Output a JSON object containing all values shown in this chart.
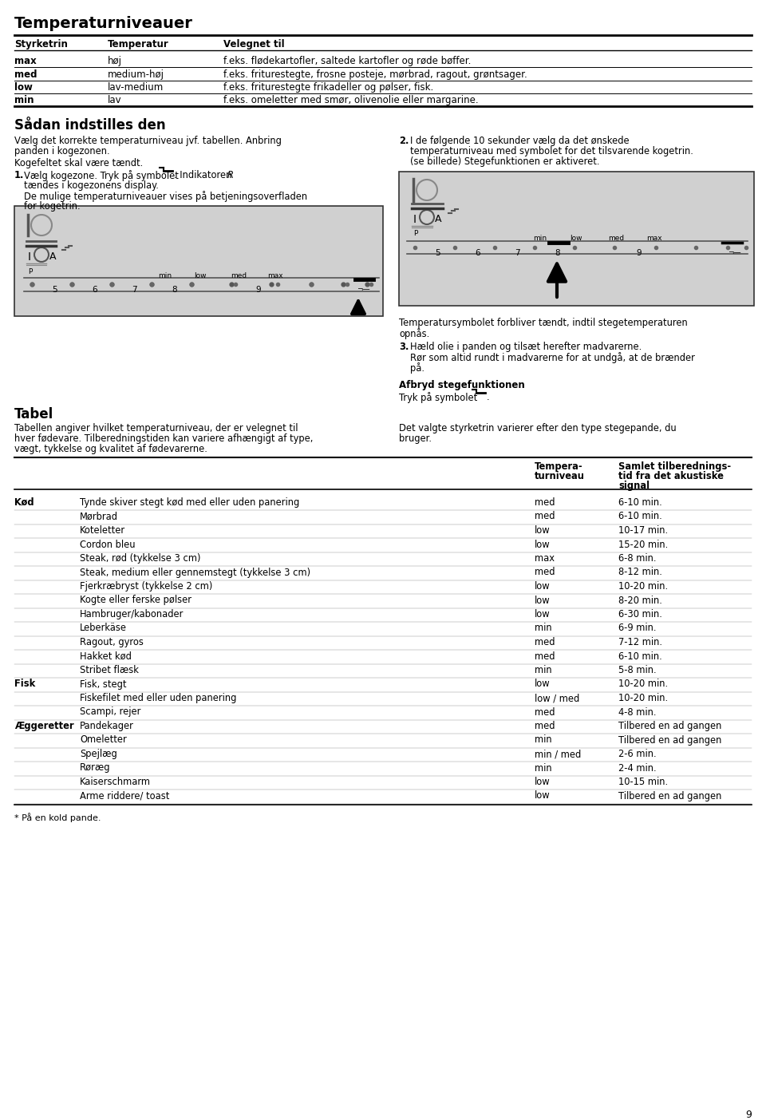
{
  "title": "Temperaturniveauer",
  "page_number": "9",
  "background": "#ffffff",
  "table1_headers": [
    "Styrketrin",
    "Temperatur",
    "Velegnet til"
  ],
  "table1_rows": [
    [
      "max",
      "høj",
      "f.eks. flødekartofler, saltede kartofler og røde bøffer."
    ],
    [
      "med",
      "medium-høj",
      "f.eks. friturestegte, frosne posteje, mørbrad, ragout, grøntsager."
    ],
    [
      "low",
      "lav-medium",
      "f.eks. friturestegte frikadeller og pølser, fisk."
    ],
    [
      "min",
      "lav",
      "f.eks. omeletter med smør, olivenolie eller margarine."
    ]
  ],
  "section_saadan": "Sådan indstilles den",
  "tabel_title": "Tabel",
  "tabel_text1a": "Tabellen angiver hvilket temperaturniveau, der er velegnet til",
  "tabel_text1b": "hver fødevare. Tilberedningstiden kan variere afhængigt af type,",
  "tabel_text1c": "vægt, tykkelse og kvalitet af fødevarerne.",
  "tabel_text2a": "Det valgte styrketrin varierer efter den type stegepande, du",
  "tabel_text2b": "bruger.",
  "table2_rows": [
    [
      "Kød",
      "Tynde skiver stegt kød med eller uden panering",
      "med",
      "6-10 min."
    ],
    [
      "",
      "Mørbrad",
      "med",
      "6-10 min."
    ],
    [
      "",
      "Koteletter",
      "low",
      "10-17 min."
    ],
    [
      "",
      "Cordon bleu",
      "low",
      "15-20 min."
    ],
    [
      "",
      "Steak, rød (tykkelse 3 cm)",
      "max",
      "6-8 min."
    ],
    [
      "",
      "Steak, medium eller gennemstegt (tykkelse 3 cm)",
      "med",
      "8-12 min."
    ],
    [
      "",
      "Fjerkræbryst (tykkelse 2 cm)",
      "low",
      "10-20 min."
    ],
    [
      "",
      "Kogte eller ferske pølser",
      "low",
      "8-20 min."
    ],
    [
      "",
      "Hambruger/kabonader",
      "low",
      "6-30 min."
    ],
    [
      "",
      "Leberkäse",
      "min",
      "6-9 min."
    ],
    [
      "",
      "Ragout, gyros",
      "med",
      "7-12 min."
    ],
    [
      "",
      "Hakket kød",
      "med",
      "6-10 min."
    ],
    [
      "",
      "Stribet flæsk",
      "min",
      "5-8 min."
    ],
    [
      "Fisk",
      "Fisk, stegt",
      "low",
      "10-20 min."
    ],
    [
      "",
      "Fiskefilet med eller uden panering",
      "low / med",
      "10-20 min."
    ],
    [
      "",
      "Scampi, rejer",
      "med",
      "4-8 min."
    ],
    [
      "Æggeretter",
      "Pandekager",
      "med",
      "Tilbered en ad gangen"
    ],
    [
      "",
      "Omeletter",
      "min",
      "Tilbered en ad gangen"
    ],
    [
      "",
      "Spejlæg",
      "min / med",
      "2-6 min."
    ],
    [
      "",
      "Røræg",
      "min",
      "2-4 min."
    ],
    [
      "",
      "Kaiserschmarm",
      "low",
      "10-15 min."
    ],
    [
      "",
      "Arme riddere/ toast",
      "low",
      "Tilbered en ad gangen"
    ]
  ],
  "footnote": "* På en kold pande."
}
